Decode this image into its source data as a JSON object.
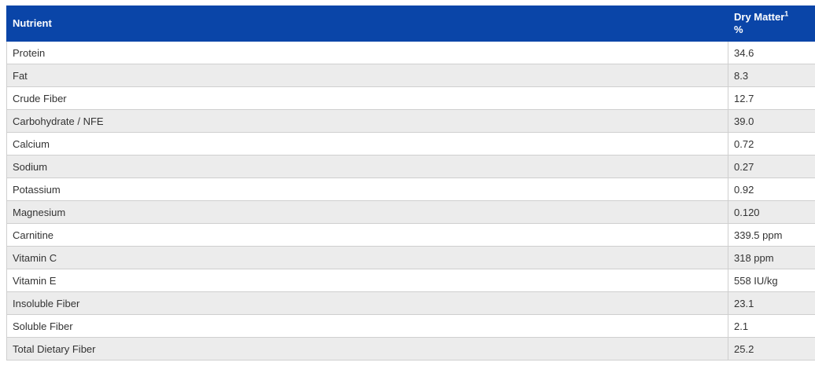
{
  "table": {
    "header": [
      {
        "text": "Nutrient"
      },
      {
        "text": "Dry Matter",
        "sup": "1",
        "unit": "%"
      }
    ],
    "rows": [
      [
        "Protein",
        "34.6"
      ],
      [
        "Fat",
        "8.3"
      ],
      [
        "Crude Fiber",
        "12.7"
      ],
      [
        "Carbohydrate / NFE",
        "39.0"
      ],
      [
        "Calcium",
        "0.72"
      ],
      [
        "Sodium",
        "0.27"
      ],
      [
        "Potassium",
        "0.92"
      ],
      [
        "Magnesium",
        "0.120"
      ],
      [
        "Carnitine",
        "339.5 ppm"
      ],
      [
        "Vitamin C",
        "318 ppm"
      ],
      [
        "Vitamin E",
        "558 IU/kg"
      ],
      [
        "Insoluble Fiber",
        "23.1"
      ],
      [
        "Soluble Fiber",
        "2.1"
      ],
      [
        "Total Dietary Fiber",
        "25.2"
      ]
    ]
  }
}
